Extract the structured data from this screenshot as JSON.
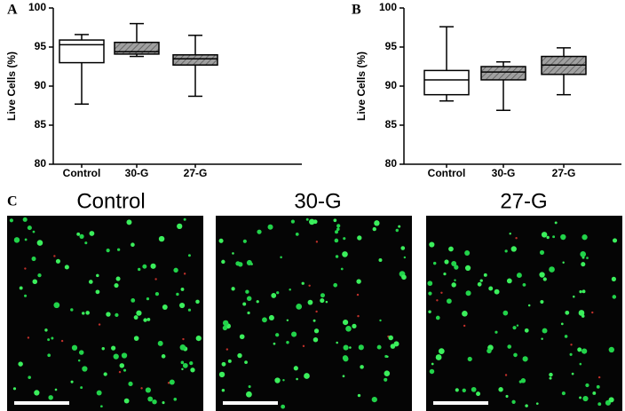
{
  "chart_data": [
    {
      "type": "box",
      "panel_label": "A",
      "y_label": "Live Cells (%)",
      "categories": [
        "Control",
        "30-G",
        "27-G"
      ],
      "min": [
        87.7,
        93.8,
        88.7
      ],
      "q1": [
        93.0,
        94.1,
        92.7
      ],
      "median": [
        95.3,
        94.4,
        93.5
      ],
      "q3": [
        95.9,
        95.6,
        94.0
      ],
      "max": [
        96.6,
        98.0,
        96.5
      ],
      "fill_colors": [
        "#ffffff",
        "#a0a0a0",
        "#a0a0a0"
      ],
      "hatch": [
        false,
        true,
        true
      ],
      "ylim": [
        80,
        100
      ],
      "yticks": [
        80,
        85,
        90,
        95,
        100
      ]
    },
    {
      "type": "box",
      "panel_label": "B",
      "y_label": "Live Cells (%)",
      "categories": [
        "Control",
        "30-G",
        "27-G"
      ],
      "min": [
        88.1,
        86.9,
        88.9
      ],
      "q1": [
        88.9,
        90.8,
        91.5
      ],
      "median": [
        90.8,
        91.8,
        92.7
      ],
      "q3": [
        92.0,
        92.5,
        93.8
      ],
      "max": [
        97.6,
        93.1,
        94.9
      ],
      "fill_colors": [
        "#ffffff",
        "#a0a0a0",
        "#a0a0a0"
      ],
      "hatch": [
        false,
        true,
        true
      ],
      "ylim": [
        80,
        100
      ],
      "yticks": [
        80,
        85,
        90,
        95,
        100
      ]
    }
  ],
  "micrographs": {
    "panel_label": "C",
    "titles": [
      "Control",
      "30-G",
      "27-G"
    ]
  }
}
